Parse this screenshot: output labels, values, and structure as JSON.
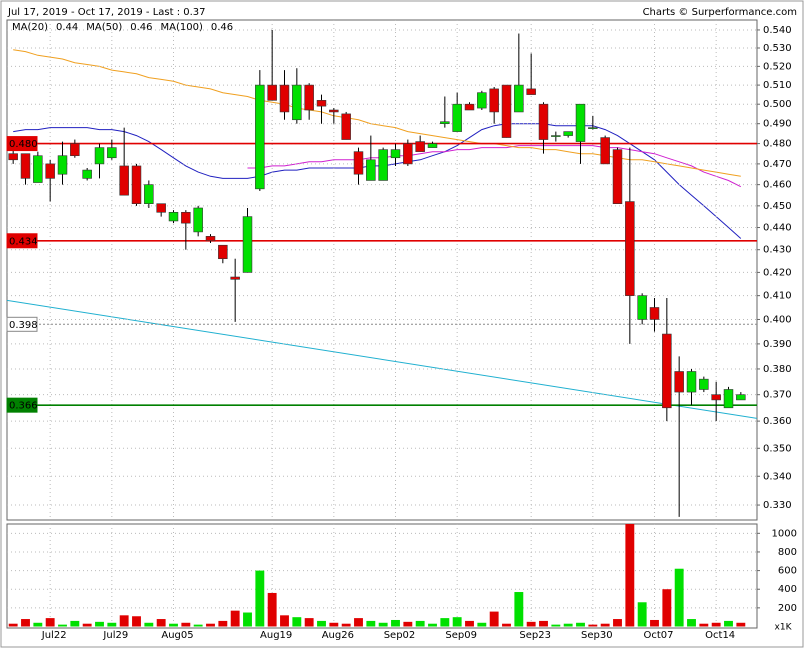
{
  "chart_data": {
    "type": "candlestick",
    "title": "Jul 17, 2019 - Oct 17, 2019 - Last : 0.37",
    "source": "Charts © Surperformance.com",
    "log_scale": true,
    "grid": true,
    "up_color": "#00e000",
    "down_color": "#e00000",
    "categories": [
      null,
      null,
      null,
      "Jul22",
      null,
      null,
      null,
      null,
      "Jul29",
      null,
      null,
      null,
      null,
      "Aug05",
      null,
      null,
      null,
      null,
      null,
      null,
      null,
      "Aug19",
      null,
      null,
      null,
      null,
      "Aug26",
      null,
      null,
      null,
      null,
      "Sep02",
      null,
      null,
      null,
      null,
      "Sep09",
      null,
      null,
      null,
      null,
      null,
      "Sep23",
      null,
      null,
      null,
      null,
      "Sep30",
      null,
      null,
      null,
      null,
      "Oct07",
      null,
      null,
      null,
      null,
      "Oct14",
      null,
      null
    ],
    "open": [
      0.475,
      0.475,
      0.461,
      0.47,
      0.465,
      0.48,
      0.463,
      0.47,
      0.473,
      0.469,
      0.469,
      0.451,
      0.451,
      0.443,
      0.447,
      0.438,
      0.436,
      0.432,
      0.418,
      0.42,
      0.458,
      0.51,
      0.51,
      0.492,
      0.51,
      0.502,
      0.497,
      0.495,
      0.476,
      0.462,
      0.462,
      0.473,
      0.48,
      0.481,
      0.478,
      0.49,
      0.486,
      0.5,
      0.498,
      0.508,
      0.51,
      0.496,
      0.508,
      0.5,
      0.484,
      0.484,
      0.481,
      0.488,
      0.483,
      0.477,
      0.452,
      0.4,
      0.405,
      0.394,
      0.379,
      0.371,
      0.372,
      0.37,
      0.365,
      0.368
    ],
    "high": [
      0.478,
      0.475,
      0.476,
      0.472,
      0.481,
      0.482,
      0.468,
      0.48,
      0.482,
      0.488,
      0.47,
      0.462,
      0.451,
      0.448,
      0.448,
      0.45,
      0.437,
      0.432,
      0.426,
      0.449,
      0.518,
      0.54,
      0.518,
      0.519,
      0.511,
      0.505,
      0.498,
      0.496,
      0.478,
      0.484,
      0.478,
      0.48,
      0.482,
      0.484,
      0.481,
      0.504,
      0.506,
      0.501,
      0.507,
      0.509,
      0.51,
      0.538,
      0.527,
      0.501,
      0.486,
      0.486,
      0.5,
      0.494,
      0.484,
      0.478,
      0.478,
      0.411,
      0.409,
      0.409,
      0.385,
      0.38,
      0.377,
      0.375,
      0.373,
      0.371
    ],
    "low": [
      0.47,
      0.46,
      0.461,
      0.452,
      0.46,
      0.473,
      0.462,
      0.463,
      0.472,
      0.455,
      0.45,
      0.449,
      0.445,
      0.442,
      0.43,
      0.436,
      0.433,
      0.424,
      0.399,
      0.42,
      0.457,
      0.502,
      0.492,
      0.49,
      0.492,
      0.49,
      0.49,
      0.482,
      0.46,
      0.462,
      0.462,
      0.469,
      0.469,
      0.476,
      0.478,
      0.488,
      0.486,
      0.497,
      0.497,
      0.49,
      0.483,
      0.496,
      0.505,
      0.475,
      0.481,
      0.483,
      0.47,
      0.487,
      0.47,
      0.451,
      0.39,
      0.398,
      0.395,
      0.36,
      0.326,
      0.366,
      0.371,
      0.36,
      0.365,
      0.368
    ],
    "close": [
      0.472,
      0.463,
      0.474,
      0.463,
      0.474,
      0.474,
      0.467,
      0.478,
      0.478,
      0.455,
      0.451,
      0.46,
      0.447,
      0.447,
      0.442,
      0.449,
      0.434,
      0.426,
      0.417,
      0.445,
      0.51,
      0.502,
      0.496,
      0.51,
      0.497,
      0.499,
      0.496,
      0.482,
      0.465,
      0.472,
      0.477,
      0.477,
      0.47,
      0.476,
      0.48,
      0.491,
      0.5,
      0.497,
      0.506,
      0.496,
      0.483,
      0.51,
      0.505,
      0.482,
      0.484,
      0.486,
      0.5,
      0.488,
      0.47,
      0.451,
      0.41,
      0.41,
      0.4,
      0.365,
      0.371,
      0.379,
      0.376,
      0.368,
      0.372,
      0.37
    ],
    "ylim": [
      0.3256,
      0.5456
    ],
    "yticks": [
      {
        "value": 0.33,
        "label": "0.330"
      },
      {
        "value": 0.34,
        "label": "0.340"
      },
      {
        "value": 0.35,
        "label": "0.350"
      },
      {
        "value": 0.36,
        "label": "0.360"
      },
      {
        "value": 0.37,
        "label": "0.370"
      },
      {
        "value": 0.38,
        "label": "0.380"
      },
      {
        "value": 0.39,
        "label": "0.390"
      },
      {
        "value": 0.4,
        "label": "0.400"
      },
      {
        "value": 0.41,
        "label": "0.410"
      },
      {
        "value": 0.42,
        "label": "0.420"
      },
      {
        "value": 0.43,
        "label": "0.430"
      },
      {
        "value": 0.44,
        "label": "0.440"
      },
      {
        "value": 0.45,
        "label": "0.450"
      },
      {
        "value": 0.46,
        "label": "0.460"
      },
      {
        "value": 0.47,
        "label": "0.470"
      },
      {
        "value": 0.48,
        "label": "0.480"
      },
      {
        "value": 0.49,
        "label": "0.490"
      },
      {
        "value": 0.5,
        "label": "0.500"
      },
      {
        "value": 0.51,
        "label": "0.510"
      },
      {
        "value": 0.52,
        "label": "0.520"
      },
      {
        "value": 0.53,
        "label": "0.530"
      },
      {
        "value": 0.54,
        "label": "0.540"
      }
    ],
    "moving_averages": [
      {
        "name": "MA(20)",
        "value": 0.44,
        "color": "#2020c0",
        "values": [
          0.486,
          0.487,
          0.487,
          0.488,
          0.488,
          0.488,
          0.488,
          0.487,
          0.487,
          0.486,
          0.484,
          0.481,
          0.477,
          0.473,
          0.469,
          0.466,
          0.464,
          0.463,
          0.463,
          0.463,
          0.464,
          0.466,
          0.467,
          0.467,
          0.468,
          0.468,
          0.468,
          0.468,
          0.468,
          0.469,
          0.469,
          0.47,
          0.471,
          0.472,
          0.474,
          0.476,
          0.479,
          0.483,
          0.487,
          0.489,
          0.49,
          0.49,
          0.49,
          0.49,
          0.489,
          0.489,
          0.489,
          0.489,
          0.487,
          0.484,
          0.48,
          0.476,
          0.472,
          0.466,
          0.46,
          0.455,
          0.45,
          0.445,
          0.44,
          0.435
        ]
      },
      {
        "name": "MA(50)",
        "value": 0.46,
        "color": "#d020d0",
        "values": [
          null,
          null,
          null,
          null,
          null,
          null,
          null,
          null,
          null,
          null,
          null,
          null,
          null,
          null,
          null,
          null,
          null,
          null,
          null,
          0.468,
          0.468,
          0.469,
          0.469,
          0.47,
          0.471,
          0.471,
          0.472,
          0.472,
          0.472,
          0.473,
          0.473,
          0.474,
          0.474,
          0.475,
          0.476,
          0.476,
          0.477,
          0.477,
          0.478,
          0.478,
          0.478,
          0.479,
          0.479,
          0.479,
          0.479,
          0.479,
          0.479,
          0.479,
          0.478,
          0.478,
          0.477,
          0.476,
          0.475,
          0.473,
          0.471,
          0.469,
          0.466,
          0.464,
          0.462,
          0.459
        ]
      },
      {
        "name": "MA(100)",
        "value": 0.46,
        "color": "#f0a020",
        "values": [
          0.529,
          0.528,
          0.526,
          0.525,
          0.524,
          0.522,
          0.521,
          0.52,
          0.518,
          0.517,
          0.516,
          0.514,
          0.513,
          0.512,
          0.51,
          0.509,
          0.508,
          0.506,
          0.505,
          0.504,
          0.502,
          0.501,
          0.5,
          0.498,
          0.497,
          0.496,
          0.494,
          0.493,
          0.492,
          0.49,
          0.489,
          0.488,
          0.486,
          0.485,
          0.484,
          0.483,
          0.482,
          0.481,
          0.48,
          0.48,
          0.479,
          0.478,
          0.478,
          0.477,
          0.477,
          0.476,
          0.475,
          0.475,
          0.474,
          0.473,
          0.472,
          0.472,
          0.471,
          0.47,
          0.469,
          0.468,
          0.467,
          0.466,
          0.465,
          0.464
        ]
      }
    ],
    "levels": [
      {
        "value": 0.48,
        "label": "0.480",
        "color": "#e00000",
        "style": "solid"
      },
      {
        "value": 0.434,
        "label": "0.434",
        "color": "#e00000",
        "style": "solid"
      },
      {
        "value": 0.398,
        "label": "0.398",
        "color": "#888888",
        "style": "dotted"
      },
      {
        "value": 0.366,
        "label": "0.366",
        "color": "#008000",
        "style": "solid"
      }
    ],
    "trend_line": {
      "from": 0.408,
      "to": 0.361,
      "color": "#20b0d0"
    },
    "volume": {
      "unit_label": "x1K",
      "ylim": [
        0,
        1100
      ],
      "yticks": [
        200,
        400,
        600,
        800,
        1000
      ],
      "values": [
        30,
        80,
        40,
        90,
        20,
        60,
        30,
        50,
        40,
        120,
        110,
        40,
        80,
        30,
        40,
        20,
        30,
        60,
        170,
        150,
        600,
        360,
        120,
        100,
        90,
        60,
        40,
        30,
        90,
        60,
        40,
        70,
        50,
        60,
        30,
        90,
        100,
        60,
        40,
        160,
        30,
        370,
        50,
        60,
        20,
        30,
        40,
        20,
        30,
        80,
        1100,
        260,
        70,
        400,
        620,
        80,
        30,
        40,
        60,
        40
      ]
    }
  }
}
